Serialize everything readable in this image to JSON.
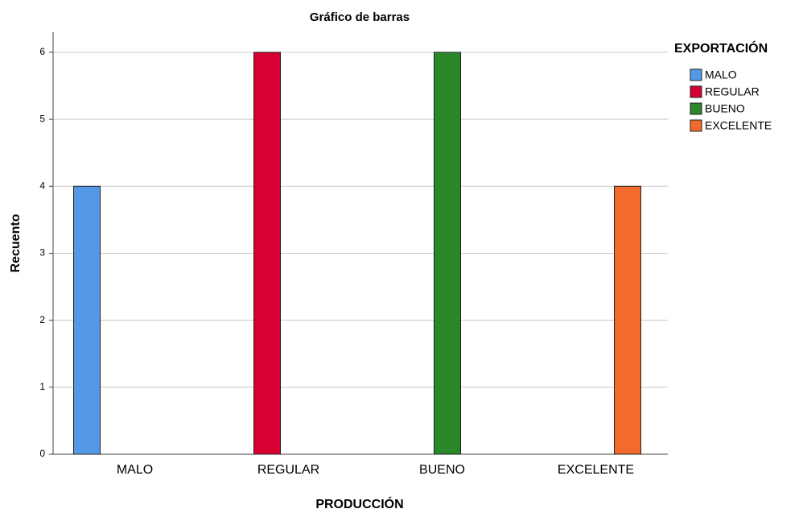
{
  "chart_data": {
    "type": "bar",
    "title": "Gráfico de barras",
    "x_label": "PRODUCCIÓN",
    "y_label": "Recuento",
    "categories": [
      "MALO",
      "REGULAR",
      "BUENO",
      "EXCELENTE"
    ],
    "legend_title": "EXPORTACIÓN",
    "legend": "right",
    "series": [
      {
        "name": "MALO",
        "color": "#5599e6",
        "values": [
          4,
          null,
          null,
          null
        ]
      },
      {
        "name": "REGULAR",
        "color": "#d60032",
        "values": [
          null,
          6,
          null,
          null
        ]
      },
      {
        "name": "BUENO",
        "color": "#2a872a",
        "values": [
          null,
          null,
          6,
          null
        ]
      },
      {
        "name": "EXCELENTE",
        "color": "#f26a2c",
        "values": [
          null,
          null,
          null,
          4
        ]
      }
    ],
    "ylim": [
      0,
      6.3
    ],
    "yticks": [
      0,
      1,
      2,
      3,
      4,
      5,
      6
    ],
    "grid": true
  }
}
